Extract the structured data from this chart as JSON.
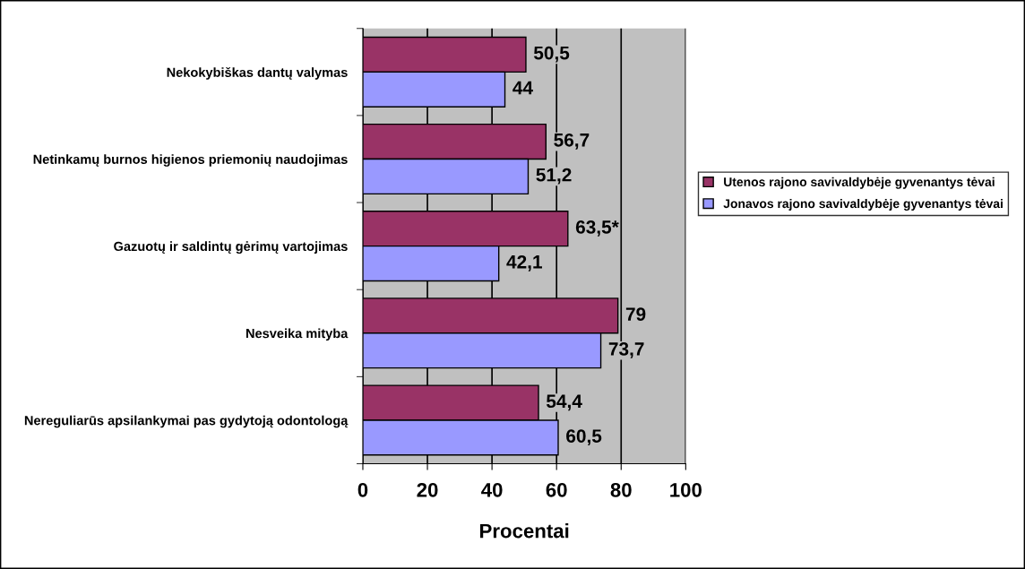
{
  "chart_data": {
    "type": "bar",
    "orientation": "horizontal",
    "xlabel": "Procentai",
    "categories": [
      "Nekokybiškas dantų valymas",
      "Netinkamų burnos higienos priemonių naudojimas",
      "Gazuotų ir saldintų gėrimų vartojimas",
      "Nesveika mityba",
      "Nereguliarūs apsilankymai pas gydytoją odontologą"
    ],
    "series": [
      {
        "name": "Utenos rajono savivaldybėje gyvenantys tėvai",
        "color": "#993366",
        "values": [
          50.5,
          56.7,
          63.5,
          79,
          54.4
        ],
        "value_labels": [
          "50,5",
          "56,7",
          "63,5*",
          "79",
          "54,4"
        ]
      },
      {
        "name": "Jonavos rajono savivaldybėje gyvenantys tėvai",
        "color": "#9999ff",
        "values": [
          44,
          51.2,
          42.1,
          73.7,
          60.5
        ],
        "value_labels": [
          "44",
          "51,2",
          "42,1",
          "73,7",
          "60,5"
        ]
      }
    ],
    "xlim": [
      0,
      100
    ],
    "xticks": [
      0,
      20,
      40,
      60,
      80,
      100
    ],
    "grid": "x",
    "legend": "right"
  }
}
